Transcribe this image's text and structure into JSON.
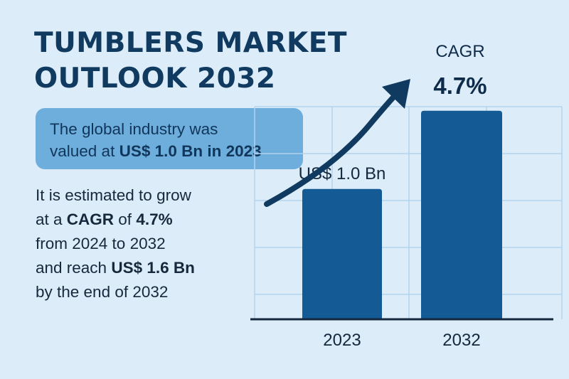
{
  "title": {
    "line1": "TUMBLERS MARKET",
    "line2": "OUTLOOK 2032"
  },
  "callout": {
    "text_line1": "The global industry was",
    "text_line2_pre": "valued at ",
    "text_line2_bold": "US$ 1.0 Bn in 2023"
  },
  "description": {
    "line1": "It is estimated to grow",
    "line2_pre": "at a ",
    "line2_bold": "CAGR",
    "line2_mid": " of ",
    "line2_bold2": "4.7%",
    "line3": "from 2024 to 2032",
    "line4_pre": "and reach ",
    "line4_bold": "US$ 1.6 Bn",
    "line5": "by the end of 2032"
  },
  "colors": {
    "background": "#dcecf8",
    "title": "#103a60",
    "bar": "#145a94",
    "arrow": "#103a60",
    "callout_bg": "#6eaedc"
  },
  "chart_data": {
    "type": "bar",
    "categories": [
      "2023",
      "2032"
    ],
    "values": [
      1.0,
      1.6
    ],
    "value_labels": [
      "US$ 1.0 Bn",
      ""
    ],
    "annotation": {
      "label_line1": "CAGR",
      "label_line2": "4.7%",
      "icon": "upward-trend-arrow"
    },
    "grid": true,
    "ylim": [
      0,
      1.85
    ]
  }
}
